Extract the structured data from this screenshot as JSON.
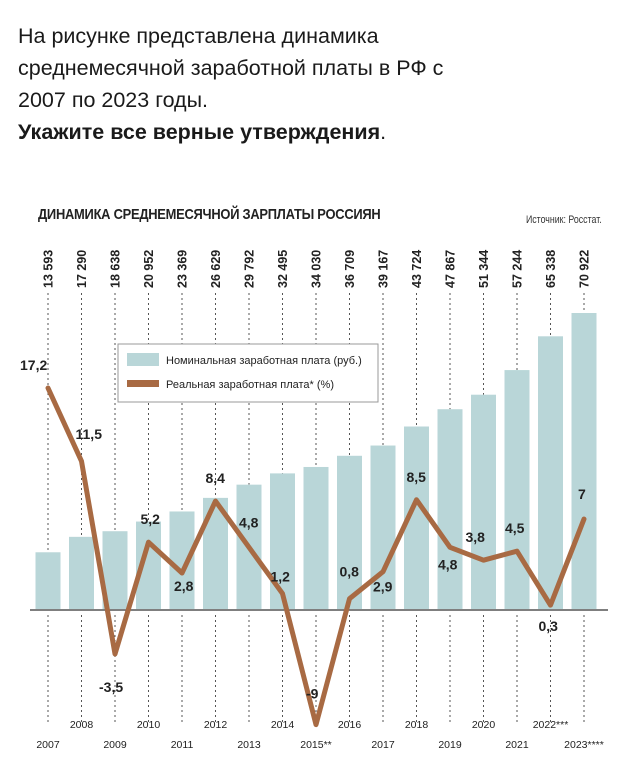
{
  "question": {
    "line1": "На рисунке представлена динамика",
    "line2": "среднемесячной заработной платы в РФ с",
    "line3_a": "2007",
    "line3_b": " по ",
    "line3_c": "2023",
    "line3_d": " годы.",
    "line4": "Укажите все верные утверждения",
    "line4_end": "."
  },
  "colors": {
    "bar": "#b9d6d8",
    "line": "#a86a43",
    "text": "#222222"
  },
  "chart_data": {
    "type": "bar",
    "title": "ДИНАМИКА СРЕДНЕМЕСЯЧНОЙ ЗАРПЛАТЫ РОССИЯН",
    "source": "Источник: Росстат.",
    "categories": [
      "2007",
      "2008",
      "2009",
      "2010",
      "2011",
      "2012",
      "2013",
      "2014",
      "2015**",
      "2016",
      "2017",
      "2018",
      "2019",
      "2020",
      "2021",
      "2022***",
      "2023****"
    ],
    "series": [
      {
        "name": "Номинальная заработная плата (руб.)",
        "type": "bar",
        "values": [
          13593,
          17290,
          18638,
          20952,
          23369,
          26629,
          29792,
          32495,
          34030,
          36709,
          39167,
          43724,
          47867,
          51344,
          57244,
          65338,
          70922
        ],
        "labels": [
          "13 593",
          "17 290",
          "18 638",
          "20 952",
          "23 369",
          "26 629",
          "29 792",
          "32 495",
          "34 030",
          "36 709",
          "39 167",
          "43 724",
          "47 867",
          "51 344",
          "57 244",
          "65 338",
          "70 922"
        ]
      },
      {
        "name": "Реальная заработная плата* (%)",
        "type": "line",
        "values": [
          17.2,
          11.5,
          -3.5,
          5.2,
          2.8,
          8.4,
          4.8,
          1.2,
          -9,
          0.8,
          2.9,
          8.5,
          4.8,
          3.8,
          4.5,
          0.3,
          7
        ],
        "labels": [
          "17,2",
          "11,5",
          "-3,5",
          "5,2",
          "2,8",
          "8,4",
          "4,8",
          "1,2",
          "-9",
          "0,8",
          "2,9",
          "8,5",
          "4,8",
          "3,8",
          "4,5",
          "0,3",
          "7"
        ]
      }
    ],
    "legend_position": "top-left",
    "grid": false
  }
}
